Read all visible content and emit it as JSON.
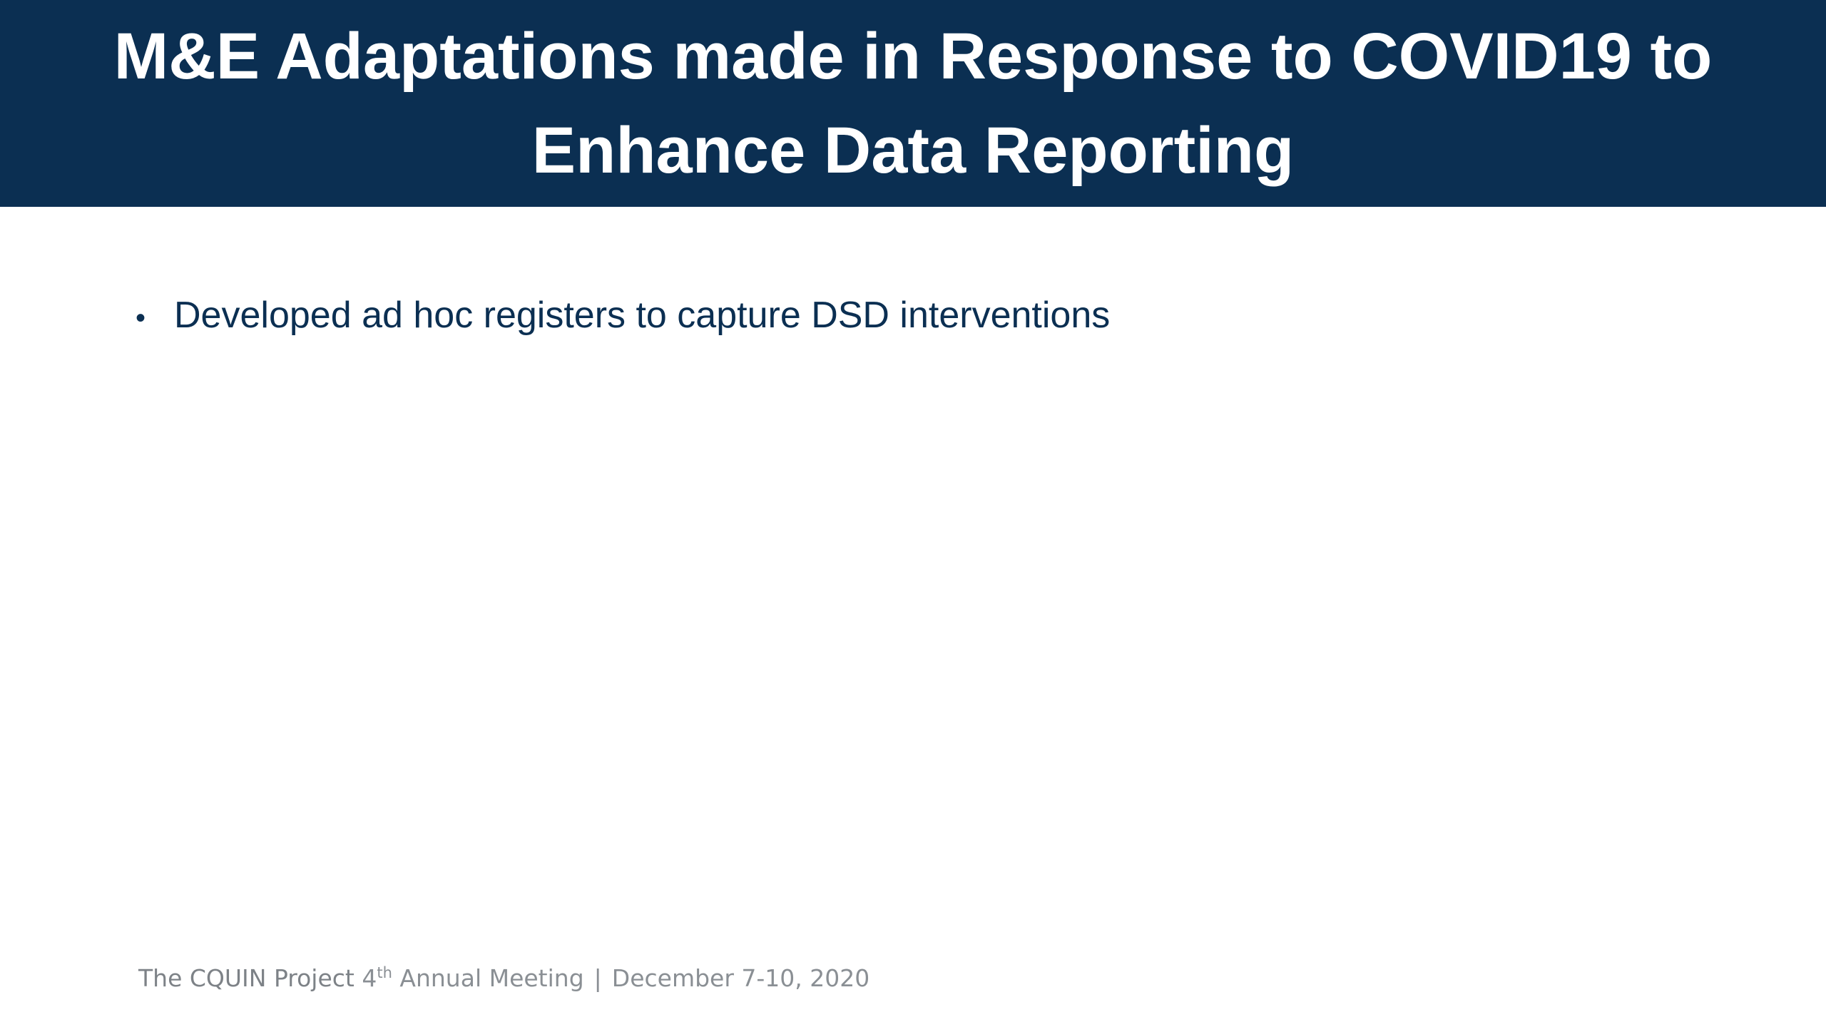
{
  "slide": {
    "title": "M&E Adaptations made in Response to COVID19 to Enhance Data Reporting",
    "bullets": [
      {
        "text": "Developed ad hoc registers to capture DSD interventions"
      }
    ]
  },
  "footer": {
    "project": "The CQUIN Project",
    "ordinal_number": "4",
    "ordinal_suffix": "th",
    "meeting": "Annual Meeting",
    "separator": "|",
    "dates": "December 7-10, 2020"
  },
  "colors": {
    "title_band": "#0b2f52",
    "title_text": "#ffffff",
    "bullet_text": "#0b2f52",
    "footer_text": "#8a8f94"
  }
}
